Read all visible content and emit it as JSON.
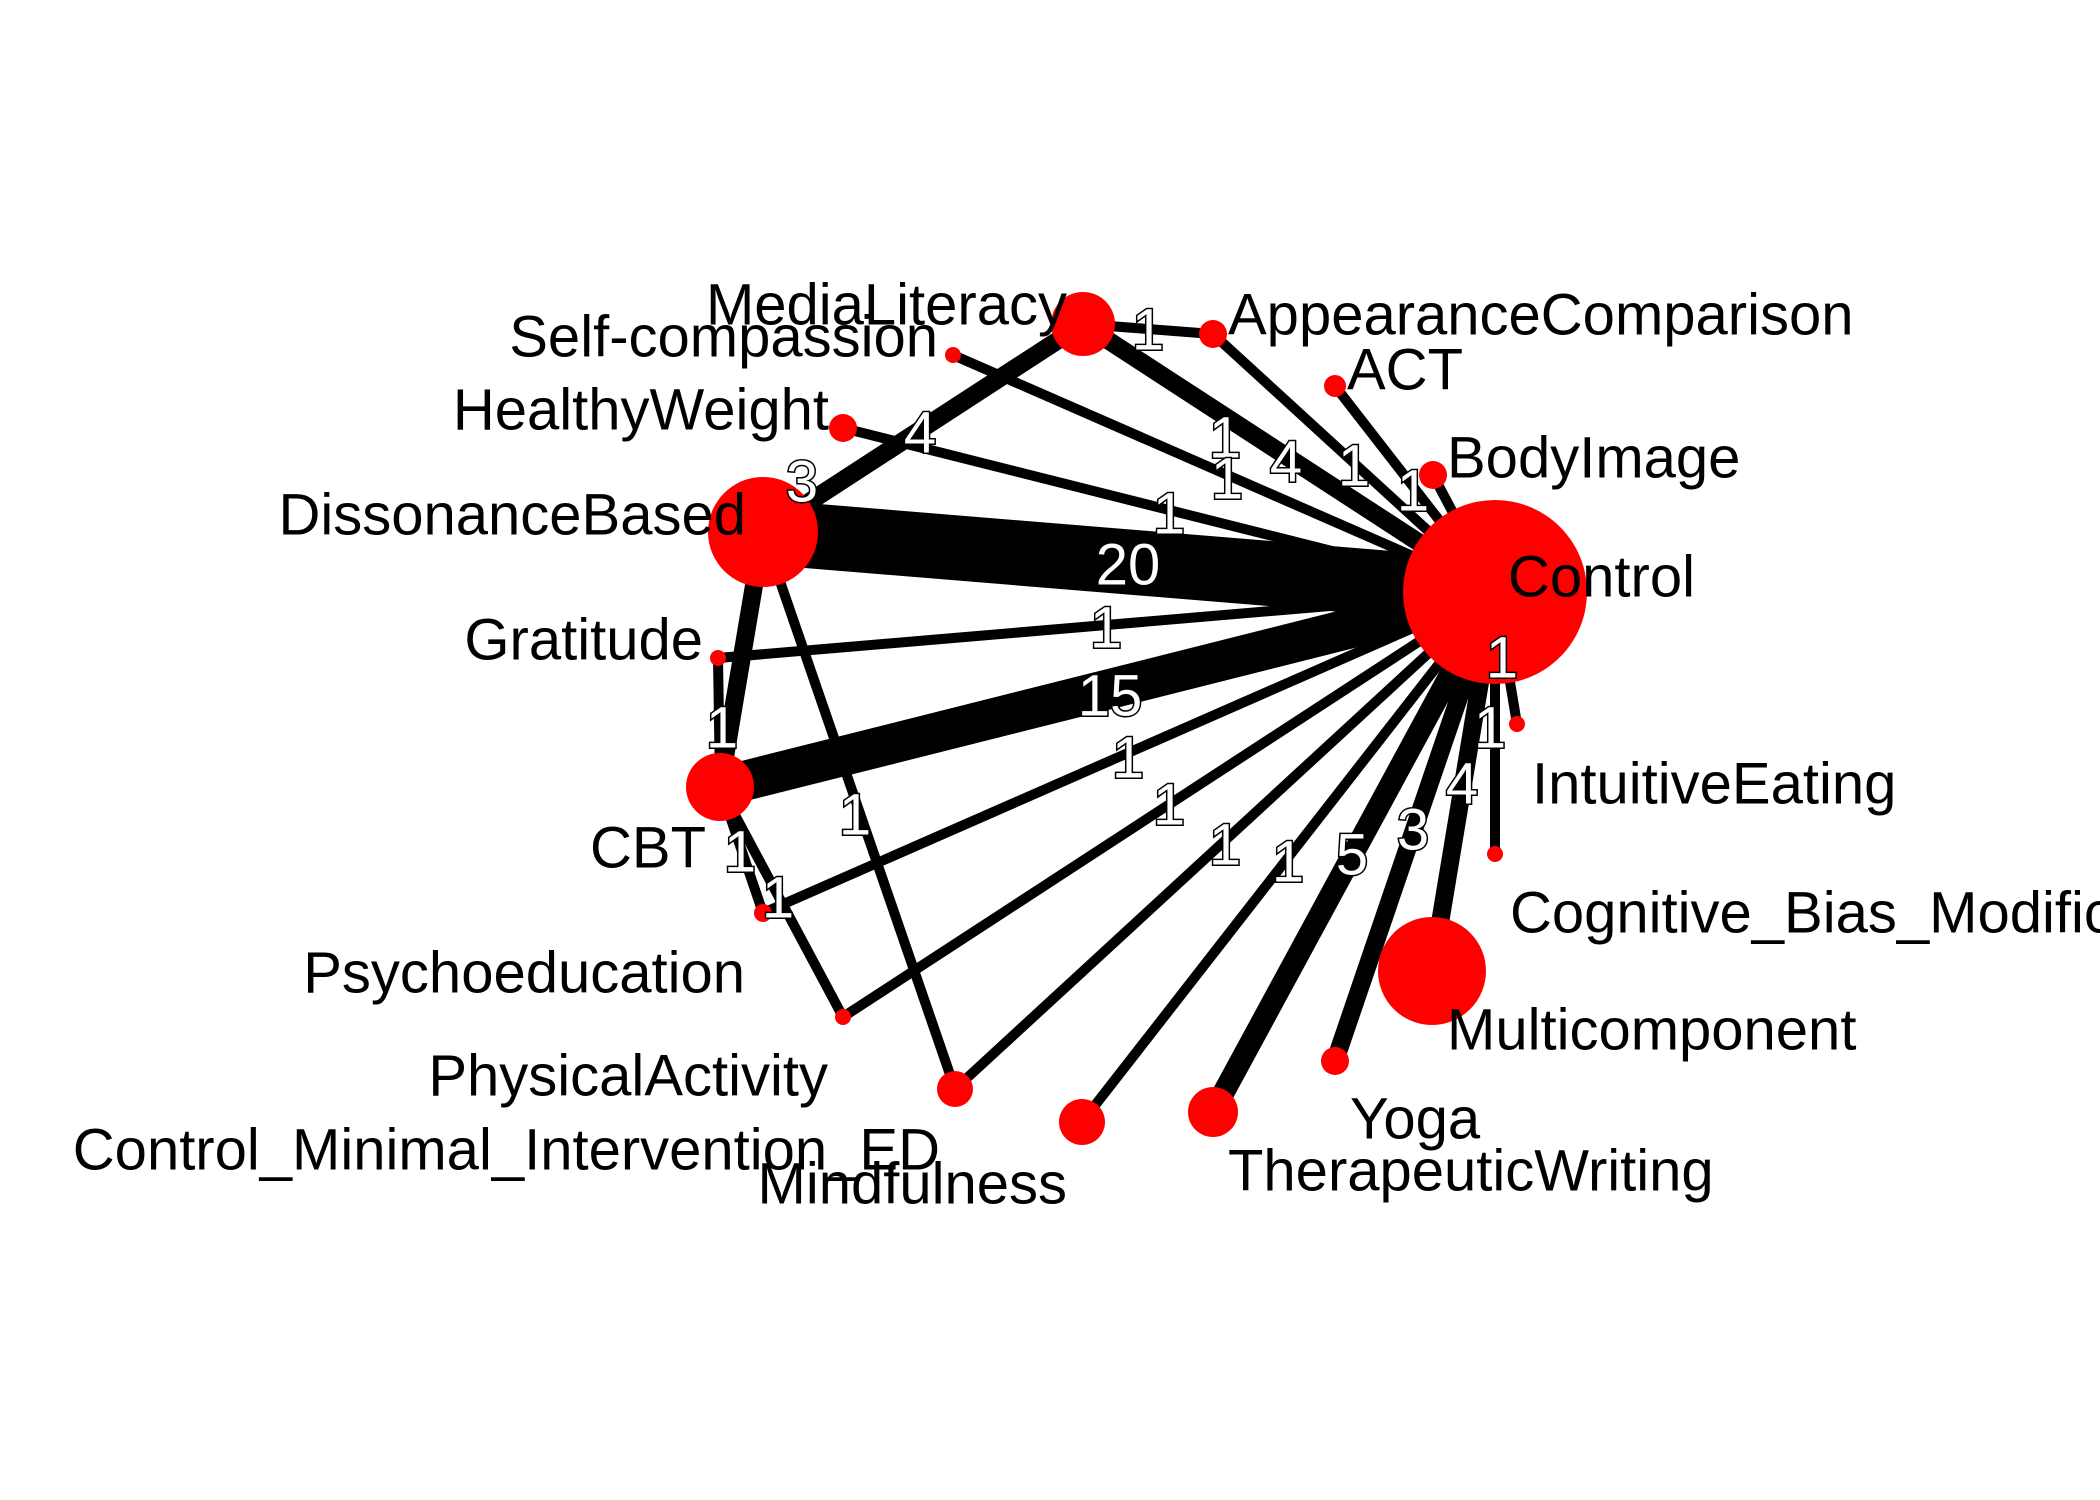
{
  "network": {
    "node_color": "#ff0000",
    "edge_color": "#000000",
    "nodes": [
      {
        "id": "Control",
        "label": "Control"
      },
      {
        "id": "AppearanceComparison",
        "label": "AppearanceComparison"
      },
      {
        "id": "ACT",
        "label": "ACT"
      },
      {
        "id": "BodyImage",
        "label": "BodyImage"
      },
      {
        "id": "IntuitiveEating",
        "label": "IntuitiveEating"
      },
      {
        "id": "Cognitive_Bias_Modification",
        "label": "Cognitive_Bias_Modification"
      },
      {
        "id": "Multicomponent",
        "label": "Multicomponent"
      },
      {
        "id": "Yoga",
        "label": "Yoga"
      },
      {
        "id": "TherapeuticWriting",
        "label": "TherapeuticWriting"
      },
      {
        "id": "Mindfulness",
        "label": "Mindfulness"
      },
      {
        "id": "Control_Minimal_Intervention_ED",
        "label": "Control_Minimal_Intervention_ED"
      },
      {
        "id": "PhysicalActivity",
        "label": "PhysicalActivity"
      },
      {
        "id": "Psychoeducation",
        "label": "Psychoeducation"
      },
      {
        "id": "CBT",
        "label": "CBT"
      },
      {
        "id": "Gratitude",
        "label": "Gratitude"
      },
      {
        "id": "DissonanceBased",
        "label": "DissonanceBased"
      },
      {
        "id": "HealthyWeight",
        "label": "HealthyWeight"
      },
      {
        "id": "Self-compassion",
        "label": "Self-compassion"
      },
      {
        "id": "MediaLiteracy",
        "label": "MediaLiteracy"
      }
    ],
    "edges": [
      {
        "from": "DissonanceBased",
        "to": "Control",
        "studies": 20
      },
      {
        "from": "CBT",
        "to": "Control",
        "studies": 15
      },
      {
        "from": "Multicomponent",
        "to": "Control",
        "studies": 4
      },
      {
        "from": "TherapeuticWriting",
        "to": "Control",
        "studies": 5
      },
      {
        "from": "Yoga",
        "to": "Control",
        "studies": 3
      },
      {
        "from": "MediaLiteracy",
        "to": "Control",
        "studies": 4
      },
      {
        "from": "MediaLiteracy",
        "to": "DissonanceBased",
        "studies": 4
      },
      {
        "from": "DissonanceBased",
        "to": "CBT",
        "studies": 3
      },
      {
        "from": "Gratitude",
        "to": "CBT",
        "studies": 1
      },
      {
        "from": "Gratitude",
        "to": "Control",
        "studies": 1
      },
      {
        "from": "MediaLiteracy",
        "to": "AppearanceComparison",
        "studies": 1
      },
      {
        "from": "AppearanceComparison",
        "to": "Control",
        "studies": 1
      },
      {
        "from": "ACT",
        "to": "Control",
        "studies": 1
      },
      {
        "from": "BodyImage",
        "to": "Control",
        "studies": 1
      },
      {
        "from": "IntuitiveEating",
        "to": "Control",
        "studies": 1
      },
      {
        "from": "Cognitive_Bias_Modification",
        "to": "Control",
        "studies": 1
      },
      {
        "from": "Mindfulness",
        "to": "Control",
        "studies": 1
      },
      {
        "from": "Control_Minimal_Intervention_ED",
        "to": "Control",
        "studies": 1
      },
      {
        "from": "PhysicalActivity",
        "to": "Control",
        "studies": 1
      },
      {
        "from": "Psychoeducation",
        "to": "Control",
        "studies": 1
      },
      {
        "from": "HealthyWeight",
        "to": "Control",
        "studies": 1
      },
      {
        "from": "Self-compassion",
        "to": "Control",
        "studies": 1
      },
      {
        "from": "CBT",
        "to": "Psychoeducation",
        "studies": 1
      },
      {
        "from": "CBT",
        "to": "PhysicalActivity",
        "studies": 1
      },
      {
        "from": "DissonanceBased",
        "to": "Control_Minimal_Intervention_ED",
        "studies": 1
      }
    ]
  }
}
